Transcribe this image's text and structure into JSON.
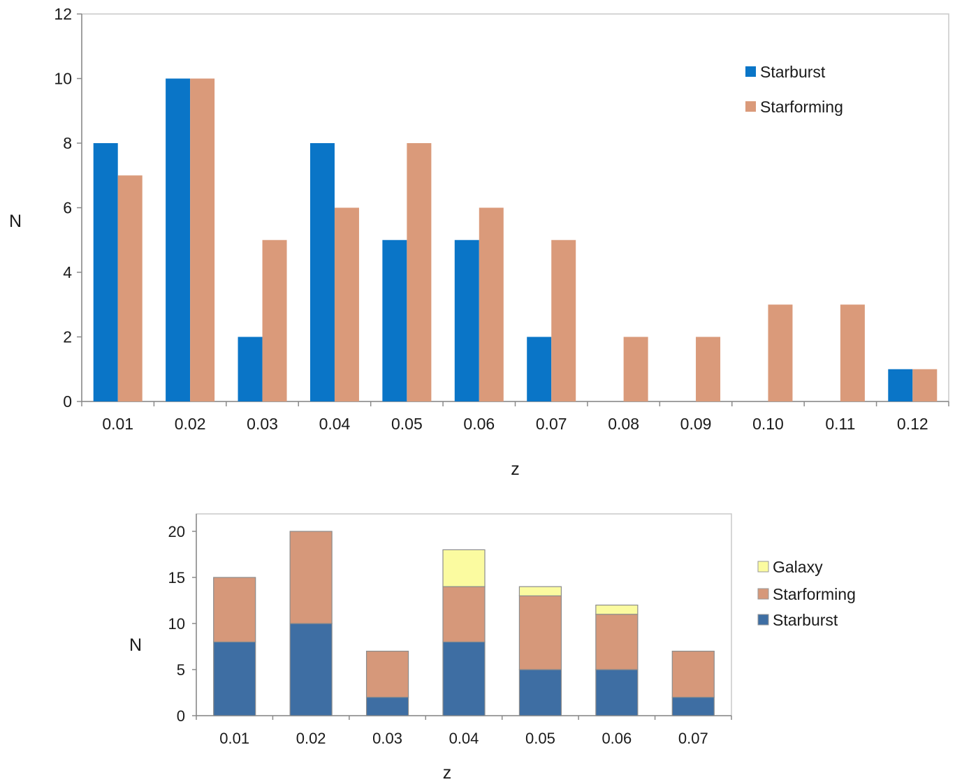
{
  "chart_data": [
    {
      "type": "bar",
      "title": "",
      "xlabel": "z",
      "ylabel": "N",
      "ylim": [
        0,
        12
      ],
      "yticks": [
        0,
        2,
        4,
        6,
        8,
        10,
        12
      ],
      "categories": [
        "0.01",
        "0.02",
        "0.03",
        "0.04",
        "0.05",
        "0.06",
        "0.07",
        "0.08",
        "0.09",
        "0.10",
        "0.11",
        "0.12"
      ],
      "series": [
        {
          "name": "Starburst",
          "color": "#0a75c7",
          "values": [
            8,
            10,
            2,
            8,
            5,
            5,
            2,
            0,
            0,
            0,
            0,
            1
          ]
        },
        {
          "name": "Starforming",
          "color": "#da9a7a",
          "values": [
            7,
            10,
            5,
            6,
            8,
            6,
            5,
            2,
            2,
            3,
            3,
            1
          ]
        }
      ],
      "legend": "top-right",
      "grid": false
    },
    {
      "type": "stacked-bar",
      "title": "",
      "xlabel": "z",
      "ylabel": "N",
      "ylim": [
        0,
        20
      ],
      "yticks": [
        0,
        5,
        10,
        15,
        20
      ],
      "categories": [
        "0.01",
        "0.02",
        "0.03",
        "0.04",
        "0.05",
        "0.06",
        "0.07"
      ],
      "series": [
        {
          "name": "Starburst",
          "color": "#3e6ea3",
          "values": [
            8,
            10,
            2,
            8,
            5,
            5,
            2
          ]
        },
        {
          "name": "Starforming",
          "color": "#d6987a",
          "values": [
            7,
            10,
            5,
            6,
            8,
            6,
            5
          ]
        },
        {
          "name": "Galaxy",
          "color": "#fbfba0",
          "values": [
            0,
            0,
            0,
            4,
            1,
            1,
            0
          ]
        }
      ],
      "legend_order": [
        "Galaxy",
        "Starforming",
        "Starburst"
      ],
      "legend": "right",
      "grid": false
    }
  ]
}
